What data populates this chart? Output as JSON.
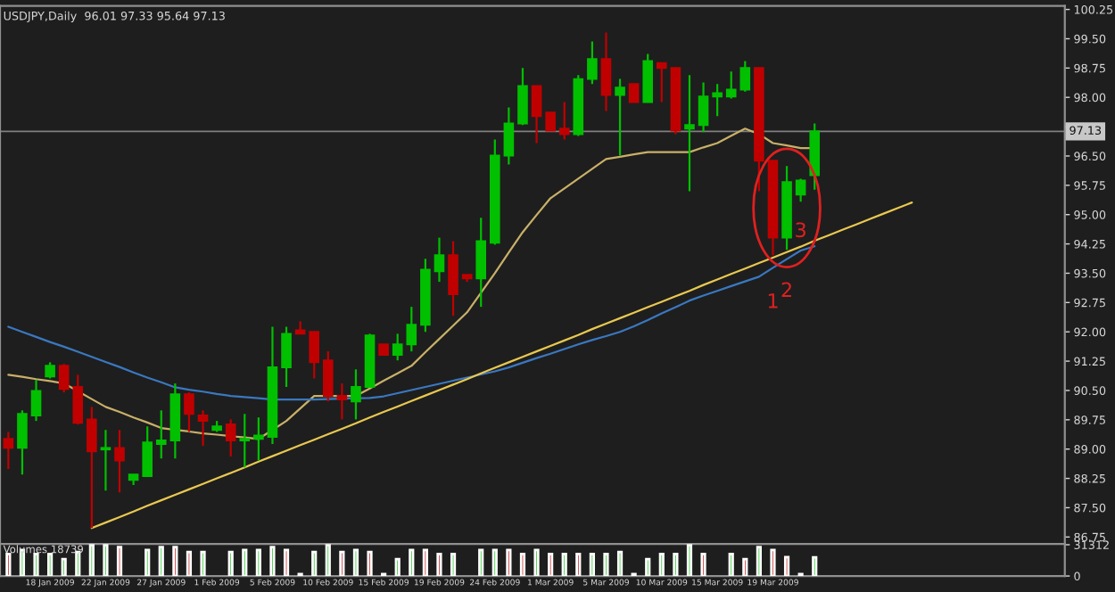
{
  "chart_data": [
    {
      "type": "candlestick",
      "title": "USDJPY,Daily  96.01 97.33 95.64 97.13",
      "categories": [
        null,
        null,
        null,
        null,
        null,
        null,
        null,
        null,
        null,
        null,
        null,
        null,
        null,
        null,
        null,
        null,
        null,
        null,
        null,
        null,
        null,
        null,
        null,
        null,
        null,
        null,
        null,
        null,
        null,
        null,
        null,
        null,
        null,
        null,
        null,
        null,
        null,
        null,
        null,
        null,
        null,
        null,
        null,
        null,
        null,
        null,
        null,
        null,
        null,
        null,
        null,
        null,
        null,
        null,
        null,
        null,
        null,
        null,
        null,
        null,
        null,
        null,
        null,
        null,
        null,
        null,
        null,
        null,
        null,
        null,
        null,
        null,
        null,
        null,
        null,
        null,
        null
      ],
      "ohlc": [
        [
          89.26,
          89.44,
          88.49,
          89.03
        ],
        [
          89.03,
          89.99,
          88.35,
          89.9
        ],
        [
          89.86,
          90.77,
          89.72,
          90.49
        ],
        [
          90.86,
          91.22,
          90.81,
          91.13
        ],
        [
          91.13,
          91.18,
          90.45,
          90.54
        ],
        [
          90.59,
          90.9,
          89.63,
          89.67
        ],
        [
          89.76,
          90.08,
          86.98,
          88.94
        ],
        [
          88.99,
          89.49,
          87.94,
          89.03
        ],
        [
          89.03,
          89.49,
          87.89,
          88.71
        ],
        [
          88.21,
          88.35,
          88.08,
          88.35
        ],
        [
          88.31,
          89.58,
          88.31,
          89.17
        ],
        [
          89.13,
          89.99,
          88.76,
          89.22
        ],
        [
          89.22,
          90.68,
          88.76,
          90.4
        ],
        [
          90.4,
          90.45,
          89.44,
          89.9
        ],
        [
          89.86,
          89.99,
          89.08,
          89.72
        ],
        [
          89.49,
          89.72,
          89.44,
          89.58
        ],
        [
          89.63,
          89.76,
          88.81,
          89.22
        ],
        [
          89.22,
          89.9,
          88.53,
          89.26
        ],
        [
          89.26,
          89.81,
          88.71,
          89.35
        ],
        [
          89.31,
          92.13,
          89.13,
          91.09
        ],
        [
          91.09,
          92.13,
          90.59,
          91.95
        ],
        [
          92.04,
          92.27,
          91.95,
          91.95
        ],
        [
          92.0,
          92.0,
          90.81,
          91.22
        ],
        [
          91.27,
          91.5,
          90.22,
          90.36
        ],
        [
          90.36,
          90.68,
          89.76,
          90.27
        ],
        [
          90.22,
          91.04,
          89.76,
          90.59
        ],
        [
          90.59,
          91.95,
          90.59,
          91.91
        ],
        [
          91.68,
          91.68,
          91.41,
          91.41
        ],
        [
          91.41,
          91.95,
          91.27,
          91.68
        ],
        [
          91.68,
          92.64,
          91.5,
          92.18
        ],
        [
          92.18,
          93.87,
          92.0,
          93.59
        ],
        [
          93.55,
          94.41,
          93.28,
          93.96
        ],
        [
          93.96,
          94.32,
          92.41,
          92.96
        ],
        [
          93.46,
          93.46,
          93.28,
          93.37
        ],
        [
          93.37,
          94.92,
          92.64,
          94.32
        ],
        [
          94.28,
          96.92,
          94.23,
          96.51
        ],
        [
          96.51,
          97.74,
          96.28,
          97.33
        ],
        [
          97.33,
          98.75,
          97.29,
          98.29
        ],
        [
          98.29,
          98.29,
          96.83,
          97.52
        ],
        [
          97.61,
          97.61,
          97.15,
          97.15
        ],
        [
          97.2,
          97.88,
          96.92,
          97.06
        ],
        [
          97.06,
          98.57,
          97.01,
          98.47
        ],
        [
          98.47,
          99.43,
          98.34,
          98.98
        ],
        [
          98.98,
          99.66,
          97.65,
          98.06
        ],
        [
          98.06,
          98.47,
          96.51,
          98.25
        ],
        [
          98.34,
          98.34,
          97.88,
          97.88
        ],
        [
          97.88,
          99.11,
          97.88,
          98.93
        ],
        [
          98.88,
          98.88,
          97.88,
          98.75
        ],
        [
          98.75,
          98.75,
          97.06,
          97.15
        ],
        [
          97.2,
          98.57,
          95.6,
          97.29
        ],
        [
          97.29,
          98.38,
          97.11,
          98.02
        ],
        [
          98.02,
          98.34,
          97.52,
          98.11
        ],
        [
          98.02,
          98.66,
          97.97,
          98.2
        ],
        [
          98.2,
          98.93,
          98.15,
          98.75
        ],
        [
          98.75,
          98.75,
          95.6,
          96.38
        ],
        [
          96.38,
          96.38,
          93.96,
          94.41
        ],
        [
          94.41,
          96.24,
          94.1,
          95.83
        ],
        [
          95.51,
          95.92,
          95.33,
          95.87
        ],
        [
          96.01,
          97.33,
          95.64,
          97.13
        ],
        null,
        null,
        null,
        null,
        null,
        null,
        null,
        null,
        null,
        null,
        null,
        null,
        null,
        null,
        null,
        null,
        null,
        null
      ],
      "colors": [
        "#c00000",
        "#00c000",
        "#00c000",
        "#00c000",
        "#c00000",
        "#c00000",
        "#c00000",
        "#00c000",
        "#c00000",
        "#00c000",
        "#00c000",
        "#00c000",
        "#00c000",
        "#c00000",
        "#c00000",
        "#00c000",
        "#c00000",
        "#00c000",
        "#00c000",
        "#00c000",
        "#00c000",
        "#c00000",
        "#c00000",
        "#c00000",
        "#c00000",
        "#00c000",
        "#00c000",
        "#c00000",
        "#00c000",
        "#00c000",
        "#00c000",
        "#00c000",
        "#c00000",
        "#c00000",
        "#00c000",
        "#00c000",
        "#00c000",
        "#00c000",
        "#c00000",
        "#c00000",
        "#c00000",
        "#00c000",
        "#00c000",
        "#c00000",
        "#00c000",
        "#c00000",
        "#00c000",
        "#c00000",
        "#c00000",
        "#00c000",
        "#00c000",
        "#00c000",
        "#00c000",
        "#00c000",
        "#c00000",
        "#c00000",
        "#00c000",
        "#00c000",
        "#00c000",
        null,
        null,
        null,
        null,
        null,
        null,
        null,
        null,
        null,
        null,
        null,
        null,
        null,
        null,
        null,
        null,
        null,
        null
      ],
      "series": [
        {
          "type": "line",
          "color": "#c8b068",
          "values": [
            90.9,
            90.85,
            90.79,
            90.74,
            90.68,
            90.48,
            90.28,
            90.08,
            89.95,
            89.81,
            89.68,
            89.54,
            89.49,
            89.45,
            89.4,
            89.37,
            89.33,
            89.3,
            89.26,
            89.49,
            89.72,
            90.04,
            90.36,
            90.36,
            90.36,
            90.36,
            90.55,
            90.75,
            90.94,
            91.13,
            91.48,
            91.82,
            92.16,
            92.5,
            93.0,
            93.5,
            94.03,
            94.55,
            94.99,
            95.42,
            95.67,
            95.92,
            96.17,
            96.42,
            96.48,
            96.54,
            96.6,
            96.6,
            96.6,
            96.6,
            96.72,
            96.83,
            97.02,
            97.2,
            97.06,
            96.83,
            96.77,
            96.7,
            96.7,
            null,
            null,
            null,
            null,
            null,
            null,
            null,
            null,
            null,
            null,
            null,
            null,
            null,
            null,
            null,
            null,
            null,
            null
          ]
        },
        {
          "type": "line",
          "color": "#3a78c0",
          "values": [
            92.13,
            92.0,
            91.87,
            91.74,
            91.62,
            91.49,
            91.36,
            91.23,
            91.1,
            90.96,
            90.83,
            90.71,
            90.58,
            90.52,
            90.47,
            90.41,
            90.36,
            90.33,
            90.3,
            90.27,
            90.27,
            90.27,
            90.27,
            90.28,
            90.29,
            90.3,
            90.31,
            90.35,
            90.43,
            90.51,
            90.59,
            90.67,
            90.75,
            90.83,
            90.91,
            90.99,
            91.09,
            91.21,
            91.33,
            91.44,
            91.56,
            91.68,
            91.79,
            91.89,
            92.0,
            92.14,
            92.3,
            92.47,
            92.63,
            92.8,
            92.93,
            93.05,
            93.17,
            93.29,
            93.41,
            93.64,
            93.86,
            94.08,
            94.19,
            null,
            null,
            null,
            null,
            null,
            null,
            null,
            null,
            null,
            null,
            null,
            null,
            null,
            null,
            null,
            null,
            null,
            null
          ]
        },
        {
          "type": "line",
          "color": "#e8c850",
          "values": [
            null,
            null,
            null,
            null,
            null,
            null,
            86.98,
            87.12,
            87.26,
            87.4,
            87.55,
            87.69,
            87.83,
            87.97,
            88.11,
            88.25,
            88.39,
            88.53,
            88.68,
            88.82,
            88.96,
            89.1,
            89.24,
            89.38,
            89.52,
            89.66,
            89.81,
            89.95,
            90.09,
            90.23,
            90.37,
            90.51,
            90.65,
            90.79,
            90.94,
            91.08,
            91.22,
            91.36,
            91.5,
            91.64,
            91.78,
            91.92,
            92.07,
            92.21,
            92.35,
            92.49,
            92.63,
            92.77,
            92.91,
            93.05,
            93.2,
            93.34,
            93.48,
            93.62,
            93.76,
            93.9,
            94.04,
            94.18,
            94.33,
            94.47,
            94.61,
            94.75,
            94.89,
            95.03,
            95.17,
            95.31,
            null,
            null,
            null,
            null,
            null,
            null,
            null,
            null,
            null,
            null,
            null
          ]
        }
      ],
      "ref_lines": [
        {
          "axis": "y",
          "value": 97.13,
          "label": "97.13",
          "color": "#808080"
        }
      ],
      "annotations": [
        "1",
        "2",
        "3"
      ],
      "ylim": [
        86.57,
        100.34
      ],
      "yticks": [
        86.75,
        {
          "value": 87.5,
          "label": "87.50"
        },
        88.25,
        {
          "value": 89,
          "label": "89.00"
        },
        89.75,
        {
          "value": 90.5,
          "label": "90.50"
        },
        91.25,
        {
          "value": 92,
          "label": "92.00"
        },
        92.75,
        {
          "value": 93.5,
          "label": "93.50"
        },
        94.25,
        {
          "value": 95,
          "label": "95.00"
        },
        95.75,
        {
          "value": 96.5,
          "label": "96.50"
        },
        {
          "value": 97.25,
          "label": null
        },
        {
          "value": 98,
          "label": "98.00"
        },
        98.75,
        {
          "value": 99.5,
          "label": "99.50"
        },
        100.25
      ],
      "tick_labels": "y",
      "grid": false
    },
    {
      "type": "bar",
      "annotations": [
        "Volumes 18739"
      ],
      "categories": [
        null,
        null,
        null,
        "18 Jan 2009",
        null,
        null,
        null,
        "22 Jan 2009",
        null,
        null,
        null,
        "27 Jan 2009",
        null,
        null,
        null,
        "1 Feb 2009",
        null,
        null,
        null,
        "5 Feb 2009",
        null,
        null,
        null,
        "10 Feb 2009",
        null,
        null,
        null,
        "15 Feb 2009",
        null,
        null,
        null,
        "19 Feb 2009",
        null,
        null,
        null,
        "24 Feb 2009",
        null,
        null,
        null,
        "1 Mar 2009",
        null,
        null,
        null,
        "5 Mar 2009",
        null,
        null,
        null,
        "10 Mar 2009",
        null,
        null,
        null,
        "15 Mar 2009",
        null,
        null,
        null,
        "19 Mar 2009",
        null,
        null,
        null,
        null,
        null,
        null,
        null,
        null,
        null,
        null,
        null,
        null,
        null,
        null,
        null,
        null,
        null,
        null,
        null,
        null,
        null
      ],
      "values": [
        22000,
        26000,
        22000,
        22000,
        17000,
        24000,
        31000,
        31000,
        29000,
        null,
        26000,
        29000,
        29000,
        24000,
        24000,
        null,
        24000,
        26000,
        26000,
        29000,
        26000,
        2000,
        24000,
        31000,
        24000,
        26000,
        24000,
        2000,
        17000,
        26000,
        26000,
        22000,
        22000,
        null,
        26000,
        26000,
        26000,
        22000,
        26000,
        22000,
        22000,
        22000,
        22000,
        22000,
        24000,
        2000,
        17000,
        22000,
        22000,
        31000,
        22000,
        null,
        22000,
        17000,
        29000,
        26000,
        19000,
        2000,
        18739,
        null,
        null,
        null,
        null,
        null,
        null,
        null,
        null,
        null,
        null,
        null,
        null,
        null,
        null,
        null,
        null,
        null,
        null
      ],
      "colors": [
        "#c00000",
        "#00c000",
        "#00c000",
        "#00c000",
        "#00c000",
        "#00c000",
        "#00c000",
        "#00c000",
        "#c00000",
        "#00c000",
        "#00c000",
        "#00c000",
        "#c00000",
        "#c00000",
        "#00c000",
        "#00c000",
        "#00c000",
        "#00c000",
        "#00c000",
        "#00c000",
        "#c00000",
        "#c00000",
        "#00c000",
        "#00c000",
        "#c00000",
        "#00c000",
        "#c00000",
        "#00c000",
        "#00c000",
        "#00c000",
        "#c00000",
        "#c00000",
        "#00c000",
        "#00c000",
        "#00c000",
        "#00c000",
        "#c00000",
        "#c00000",
        "#00c000",
        "#c00000",
        "#00c000",
        "#c00000",
        "#00c000",
        "#00c000",
        "#00c000",
        "#c00000",
        "#00c000",
        "#00c000",
        "#00c000",
        "#00c000",
        "#c00000",
        "#00c000",
        "#00c000",
        "#c00000",
        "#00c000",
        "#c00000",
        "#c00000",
        "#c00000",
        "#00c000",
        null,
        null,
        null,
        null,
        null,
        null,
        null,
        null,
        null,
        null,
        null,
        null,
        null,
        null,
        null,
        null,
        null,
        null
      ],
      "ylim": [
        0,
        32000
      ],
      "yticks": [
        0,
        31312
      ],
      "grid": false
    }
  ]
}
